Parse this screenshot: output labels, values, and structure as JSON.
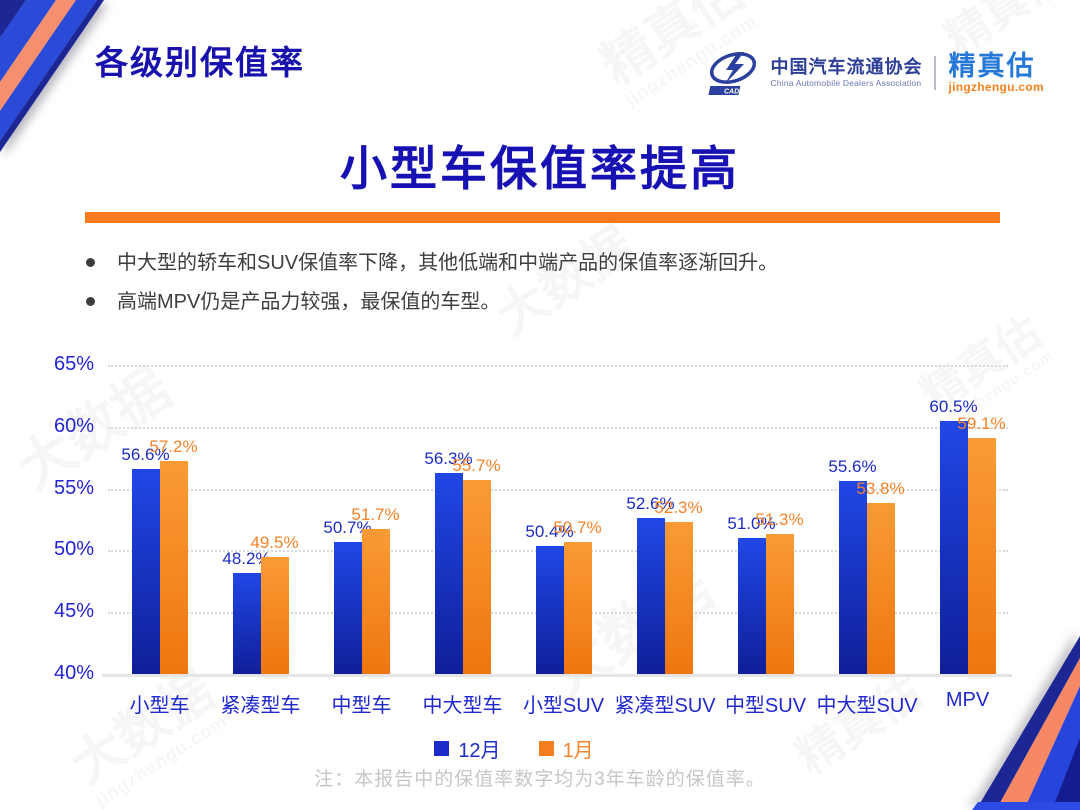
{
  "slide": {
    "header": {
      "section_title": "各级别保值率",
      "logo": {
        "assoc_logo_text": "CADA",
        "assoc_cn": "中国汽车流通协会",
        "assoc_en": "China Automobile Dealers Association",
        "brand_cn": "精真估",
        "brand_domain": "jingzhengu.com"
      }
    },
    "main_title": "小型车保值率提高",
    "bullets": [
      "中大型的轿车和SUV保值率下降，其他低端和中端产品的保值率逐渐回升。",
      "高端MPV仍是产品力较强，最保值的车型。"
    ],
    "footnote": "注：本报告中的保值率数字均为3年车龄的保值率。",
    "colors": {
      "title_navy": "#1711b4",
      "divider_orange": "#f97b1d",
      "axis_label_blue": "#2324d2",
      "category_label_blue": "#2028d0",
      "corner_navy": "#1c2694",
      "corner_blue": "#2a4ad8",
      "corner_salmon": "#f68f70"
    },
    "watermark_texts": [
      "精真估",
      "jingzhengu.com",
      "大数据"
    ]
  },
  "chart_data": {
    "type": "bar",
    "title": "",
    "xlabel": "",
    "ylabel": "",
    "categories": [
      "小型车",
      "紧凑型车",
      "中型车",
      "中大型车",
      "小型SUV",
      "紧凑型SUV",
      "中型SUV",
      "中大型SUV",
      "MPV"
    ],
    "series": [
      {
        "name": "12月",
        "values": [
          56.6,
          48.2,
          50.7,
          56.3,
          50.4,
          52.6,
          51.0,
          55.6,
          60.5
        ],
        "color": "#1b2ac8",
        "label_color": "#1d2cc4",
        "gradient": [
          "#2047e6",
          "#0f1f99"
        ]
      },
      {
        "name": "1月",
        "values": [
          57.2,
          49.5,
          51.7,
          55.7,
          50.7,
          52.3,
          51.3,
          53.8,
          59.1
        ],
        "color": "#f57e1e",
        "label_color": "#f5832a",
        "gradient": [
          "#fa9b35",
          "#ef7610"
        ]
      }
    ],
    "ylim": [
      40,
      65
    ],
    "yticks": [
      "40%",
      "45%",
      "50%",
      "55%",
      "60%",
      "65%"
    ],
    "value_suffix": "%",
    "grid": true,
    "legend_position": "bottom"
  }
}
